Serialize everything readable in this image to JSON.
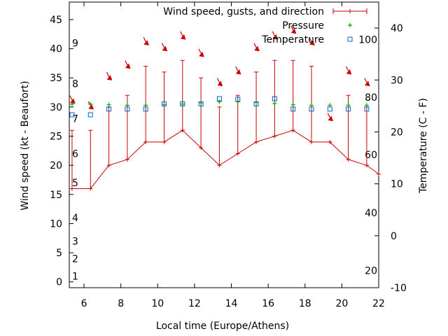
{
  "chart_data": {
    "type": "line",
    "title": "",
    "xlabel": "Local time (Europe/Athens)",
    "ylabel": "Wind speed (kt - Beaufort)",
    "y2label": "Temperature (C - F)",
    "xlim": [
      5.2,
      22
    ],
    "ylim": [
      -1,
      48
    ],
    "y2lim": [
      -10,
      45
    ],
    "x_ticks": [
      6,
      8,
      10,
      12,
      14,
      16,
      18,
      20,
      22
    ],
    "y_ticks": [
      0,
      5,
      10,
      15,
      20,
      25,
      30,
      35,
      40,
      45
    ],
    "y2_ticks": [
      -10,
      0,
      10,
      20,
      30,
      40
    ],
    "beaufort_labels": [
      {
        "label": "1",
        "y": 1
      },
      {
        "label": "2",
        "y": 4
      },
      {
        "label": "3",
        "y": 7
      },
      {
        "label": "4",
        "y": 11
      },
      {
        "label": "5",
        "y": 17
      },
      {
        "label": "6",
        "y": 22
      },
      {
        "label": "7",
        "y": 28
      },
      {
        "label": "8",
        "y": 34
      },
      {
        "label": "9",
        "y": 41
      }
    ],
    "fahrenheit_labels": [
      {
        "label": "20",
        "y2": -6.7
      },
      {
        "label": "40",
        "y2": 4.4
      },
      {
        "label": "60",
        "y2": 15.6
      },
      {
        "label": "80",
        "y2": 26.7
      },
      {
        "label": "100",
        "y2": 37.8
      }
    ],
    "legend": {
      "placement": "top-right",
      "entries": [
        "Wind speed, gusts, and direction",
        "Pressure",
        "Temperature"
      ]
    },
    "series": [
      {
        "name": "Wind speed, gusts, and direction",
        "color": "#cc0000",
        "x": [
          5.35,
          6.35,
          7.35,
          8.35,
          9.35,
          10.35,
          11.35,
          12.35,
          13.35,
          14.35,
          15.35,
          16.35,
          17.35,
          18.35,
          19.35,
          20.35,
          21.35,
          22.0
        ],
        "values": [
          16,
          16,
          20,
          21,
          24,
          24,
          26,
          23,
          20,
          22,
          24,
          25,
          26,
          24,
          24,
          21,
          20,
          18.5
        ],
        "gusts": [
          26,
          26,
          30,
          32,
          37,
          36,
          38,
          35,
          30,
          32,
          36,
          38,
          38,
          37,
          24,
          32,
          30,
          null
        ],
        "direction_arrow_y": [
          31,
          30,
          35,
          37,
          41,
          40,
          42,
          39,
          34,
          36,
          40,
          42,
          43,
          41,
          28,
          36,
          34,
          null
        ]
      },
      {
        "name": "Pressure",
        "color": "#00aa00",
        "x": [
          5.35,
          6.35,
          7.35,
          8.35,
          9.35,
          10.35,
          11.35,
          12.35,
          13.35,
          14.35,
          15.35,
          16.35,
          17.35,
          18.35,
          19.35,
          20.35,
          21.35
        ],
        "values": [
          30.5,
          30.5,
          30.4,
          30.3,
          30.3,
          30.4,
          30.5,
          30.7,
          30.9,
          30.9,
          30.8,
          30.6,
          30.4,
          30.3,
          30.3,
          30.3,
          30.3
        ]
      },
      {
        "name": "Temperature",
        "color": "#0066cc",
        "axis": "y2",
        "x": [
          5.35,
          6.35,
          7.35,
          8.35,
          9.35,
          10.35,
          11.35,
          12.35,
          13.35,
          14.35,
          15.35,
          16.35,
          17.35,
          18.35,
          19.35,
          20.35,
          21.35
        ],
        "values": [
          23.3,
          23.3,
          24.4,
          24.4,
          24.4,
          25.4,
          25.4,
          25.4,
          26.4,
          26.3,
          25.4,
          26.4,
          24.4,
          24.4,
          24.4,
          24.4,
          24.4
        ]
      }
    ]
  }
}
